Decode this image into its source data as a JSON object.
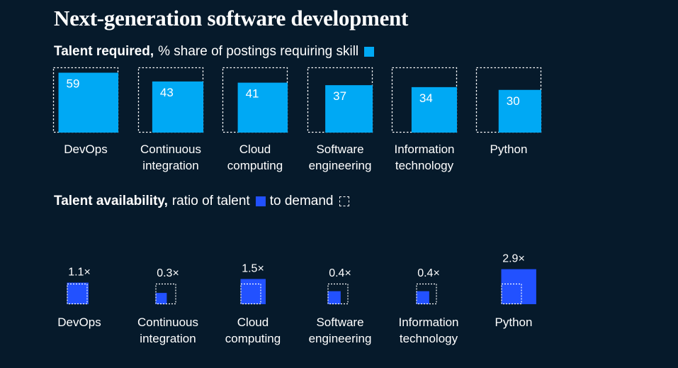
{
  "title": "Next-generation software development",
  "talent_required": {
    "label_bold": "Talent required,",
    "label_rest": "% share of postings requiring skill"
  },
  "talent_availability": {
    "label_bold": "Talent availability,",
    "label_mid": "ratio of talent",
    "label_end": "to demand"
  },
  "colors": {
    "background": "#061a2b",
    "required": "#00a9f4",
    "talent": "#2251ff",
    "demand_outline": "#ffffff"
  },
  "chart_data": [
    {
      "type": "bar",
      "title": "Talent required",
      "unit": "% share of postings requiring skill",
      "categories": [
        [
          "DevOps"
        ],
        [
          "Continuous",
          "integration"
        ],
        [
          "Cloud",
          "computing"
        ],
        [
          "Software",
          "engineering"
        ],
        [
          "Information",
          "technology"
        ],
        [
          "Python"
        ]
      ],
      "values": [
        59,
        43,
        41,
        37,
        34,
        30
      ],
      "value_labels": [
        "59",
        "43",
        "41",
        "37",
        "34",
        "30"
      ],
      "ylim": [
        0,
        100
      ]
    },
    {
      "type": "bar",
      "title": "Talent availability",
      "unit": "ratio of talent to demand",
      "categories": [
        [
          "DevOps"
        ],
        [
          "Continuous",
          "integration"
        ],
        [
          "Cloud",
          "computing"
        ],
        [
          "Software",
          "engineering"
        ],
        [
          "Information",
          "technology"
        ],
        [
          "Python"
        ]
      ],
      "values": [
        1.1,
        0.3,
        1.5,
        0.4,
        0.4,
        2.9
      ],
      "value_labels": [
        "1.1×",
        "0.3×",
        "1.5×",
        "0.4×",
        "0.4×",
        "2.9×"
      ]
    }
  ]
}
